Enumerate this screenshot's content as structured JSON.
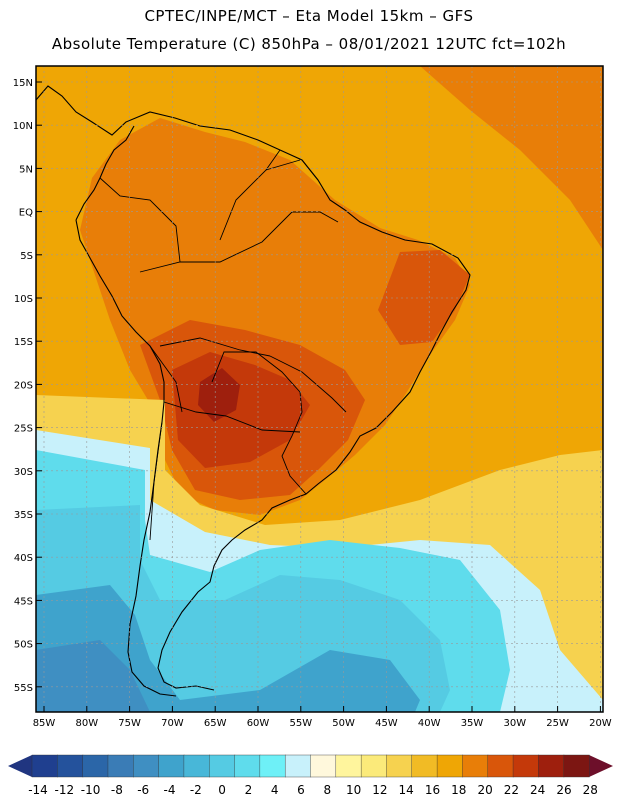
{
  "title": {
    "line1": "CPTEC/INPE/MCT –   Eta Model 15km – GFS",
    "line2": "Absolute Temperature (C) 850hPa – 08/01/2021 12UTC fct=102h"
  },
  "map": {
    "lon_labels": [
      "85W",
      "80W",
      "75W",
      "70W",
      "65W",
      "60W",
      "55W",
      "50W",
      "45W",
      "40W",
      "35W",
      "30W",
      "25W",
      "20W"
    ],
    "lat_labels": [
      "15N",
      "10N",
      "5N",
      "EQ",
      "5S",
      "10S",
      "15S",
      "20S",
      "25S",
      "30S",
      "35S",
      "40S",
      "45S",
      "50S",
      "55S"
    ],
    "regions": [
      {
        "name": "base-ocean",
        "value": 18
      },
      {
        "name": "north-atlantic-warm",
        "value": 20
      },
      {
        "name": "continent-warm",
        "value": 20
      },
      {
        "name": "central-hot",
        "value": 22
      },
      {
        "name": "northeast-hot",
        "value": 22
      },
      {
        "name": "core-very-hot",
        "value": 24
      },
      {
        "name": "hotspot",
        "value": 26
      },
      {
        "name": "subtropical-cool",
        "value": 14
      },
      {
        "name": "pale-band",
        "value": 6
      },
      {
        "name": "cold-light",
        "value": 2
      },
      {
        "name": "cold-mid",
        "value": 0
      },
      {
        "name": "cold-deep",
        "value": -4
      },
      {
        "name": "cold-deepest",
        "value": -6
      }
    ]
  },
  "colorbar": {
    "labels": [
      "-14",
      "-12",
      "-10",
      "-8",
      "-6",
      "-4",
      "-2",
      "0",
      "2",
      "4",
      "6",
      "8",
      "10",
      "12",
      "14",
      "16",
      "18",
      "20",
      "22",
      "24",
      "26",
      "28"
    ],
    "colors": [
      "#1f3f8f",
      "#24529c",
      "#2b66a8",
      "#3a7cb6",
      "#3f8fc2",
      "#3fa3cc",
      "#48b7d8",
      "#55cbe3",
      "#5fdcec",
      "#6ef0f7",
      "#c8f1fb",
      "#fff8dc",
      "#fff59d",
      "#fbea7a",
      "#f6d24f",
      "#f1bb25",
      "#efa605",
      "#e87e08",
      "#d9560a",
      "#c4390a",
      "#9e1f0d",
      "#7c1612"
    ],
    "low_extend_color": "#203580",
    "high_extend_color": "#6d0f2a"
  }
}
